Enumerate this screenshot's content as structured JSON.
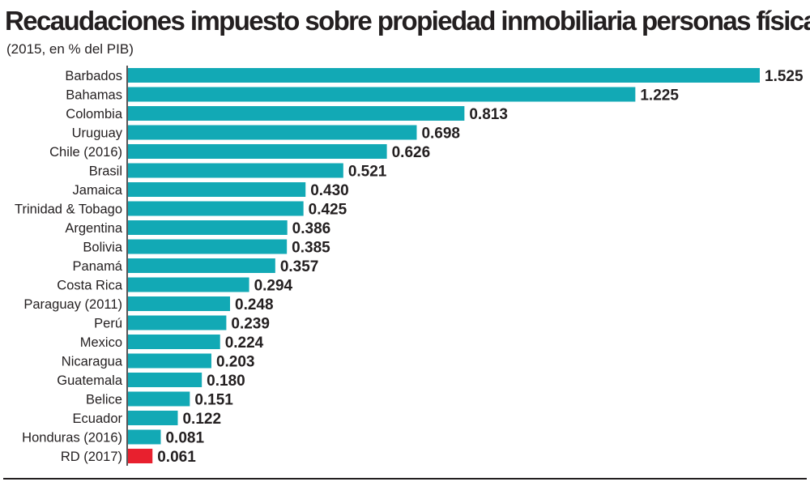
{
  "chart_data": {
    "type": "bar",
    "orientation": "horizontal",
    "title": "Recaudaciones impuesto sobre propiedad inmobiliaria personas físicas",
    "subtitle": "(2015, en % del PIB)",
    "categories": [
      "Barbados",
      "Bahamas",
      "Colombia",
      "Uruguay",
      "Chile (2016)",
      "Brasil",
      "Jamaica",
      "Trinidad & Tobago",
      "Argentina",
      "Bolivia",
      "Panamá",
      "Costa Rica",
      "Paraguay (2011)",
      "Perú",
      "Mexico",
      "Nicaragua",
      "Guatemala",
      "Belice",
      "Ecuador",
      "Honduras (2016)",
      "RD (2017)"
    ],
    "values": [
      1.525,
      1.225,
      0.813,
      0.698,
      0.626,
      0.521,
      0.43,
      0.425,
      0.386,
      0.385,
      0.357,
      0.294,
      0.248,
      0.239,
      0.224,
      0.203,
      0.18,
      0.151,
      0.122,
      0.081,
      0.061
    ],
    "value_labels": [
      "1.525",
      "1.225",
      "0.813",
      "0.698",
      "0.626",
      "0.521",
      "0.430",
      "0.425",
      "0.386",
      "0.385",
      "0.357",
      "0.294",
      "0.248",
      "0.239",
      "0.224",
      "0.203",
      "0.180",
      "0.151",
      "0.122",
      "0.081",
      "0.061"
    ],
    "xlim": [
      0,
      1.525
    ],
    "grid": false,
    "legend": "none",
    "colors": {
      "bar": "#12a9b5",
      "highlight": "#e8202e",
      "text": "#231f20",
      "axis": "#231f20"
    },
    "highlight_category": "RD (2017)"
  }
}
